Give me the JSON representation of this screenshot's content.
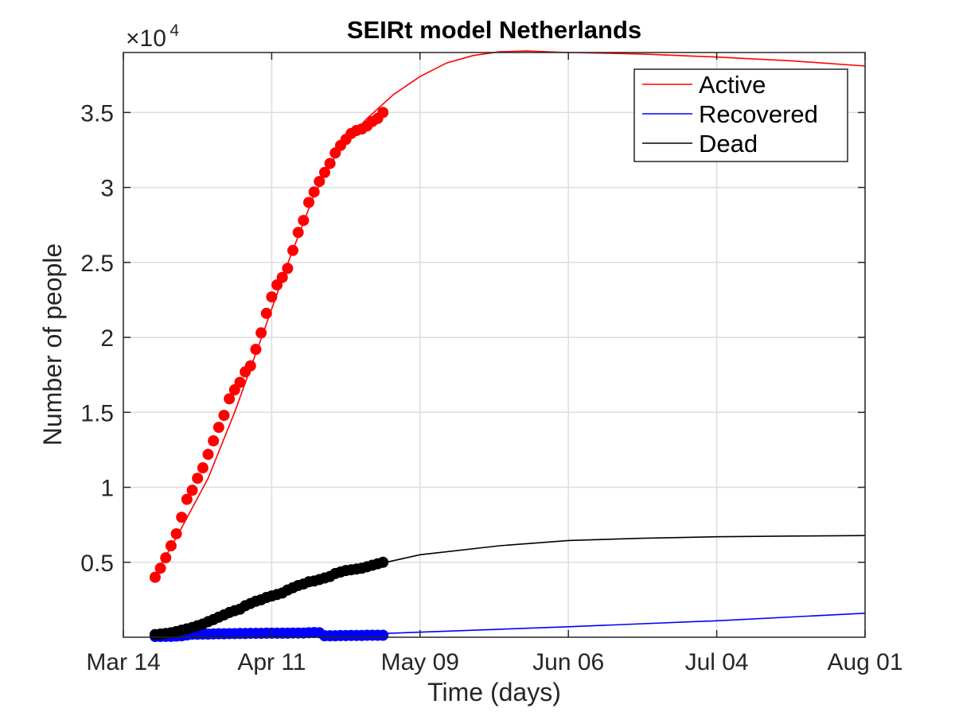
{
  "chart_data": {
    "type": "line",
    "title": "SEIRt model Netherlands",
    "xlabel": "Time (days)",
    "ylabel": "Number of people",
    "y_exponent_base": "×10",
    "y_exponent_power": "4",
    "x_start_date": "2020-03-14",
    "xlim": [
      "2020-03-14",
      "2020-08-01"
    ],
    "ylim": [
      0,
      39000
    ],
    "x_ticks": [
      "2020-03-14",
      "2020-04-11",
      "2020-05-09",
      "2020-06-06",
      "2020-07-04",
      "2020-08-01"
    ],
    "x_tick_labels": [
      "Mar 14",
      "Apr 11",
      "May 09",
      "Jun 06",
      "Jul 04",
      "Aug 01"
    ],
    "y_ticks": [
      5000,
      10000,
      15000,
      20000,
      25000,
      30000,
      35000
    ],
    "y_tick_labels": [
      "0.5",
      "1",
      "1.5",
      "2",
      "2.5",
      "3",
      "3.5"
    ],
    "grid": true,
    "legend_position": "top-right",
    "series": [
      {
        "name": "Active",
        "color": "#ff0000",
        "model_curve": [
          [
            "2020-03-20",
            4100
          ],
          [
            "2020-03-25",
            7300
          ],
          [
            "2020-03-30",
            10600
          ],
          [
            "2020-04-04",
            15000
          ],
          [
            "2020-04-09",
            19900
          ],
          [
            "2020-04-14",
            24900
          ],
          [
            "2020-04-19",
            29500
          ],
          [
            "2020-04-24",
            32700
          ],
          [
            "2020-04-29",
            34600
          ],
          [
            "2020-05-04",
            36200
          ],
          [
            "2020-05-09",
            37400
          ],
          [
            "2020-05-14",
            38300
          ],
          [
            "2020-05-19",
            38800
          ],
          [
            "2020-05-24",
            39050
          ],
          [
            "2020-05-29",
            39100
          ],
          [
            "2020-06-06",
            39000
          ],
          [
            "2020-06-20",
            38900
          ],
          [
            "2020-07-04",
            38700
          ],
          [
            "2020-07-18",
            38450
          ],
          [
            "2020-08-01",
            38100
          ]
        ],
        "observed": [
          [
            "2020-03-20",
            4000
          ],
          [
            "2020-03-21",
            4600
          ],
          [
            "2020-03-22",
            5300
          ],
          [
            "2020-03-23",
            6100
          ],
          [
            "2020-03-24",
            6900
          ],
          [
            "2020-03-25",
            8000
          ],
          [
            "2020-03-26",
            9200
          ],
          [
            "2020-03-27",
            9800
          ],
          [
            "2020-03-28",
            10600
          ],
          [
            "2020-03-29",
            11300
          ],
          [
            "2020-03-30",
            12200
          ],
          [
            "2020-03-31",
            13100
          ],
          [
            "2020-04-01",
            14000
          ],
          [
            "2020-04-02",
            14800
          ],
          [
            "2020-04-03",
            15900
          ],
          [
            "2020-04-04",
            16500
          ],
          [
            "2020-04-05",
            17000
          ],
          [
            "2020-04-06",
            17700
          ],
          [
            "2020-04-07",
            18100
          ],
          [
            "2020-04-08",
            19200
          ],
          [
            "2020-04-09",
            20300
          ],
          [
            "2020-04-10",
            21600
          ],
          [
            "2020-04-11",
            22700
          ],
          [
            "2020-04-12",
            23500
          ],
          [
            "2020-04-13",
            24000
          ],
          [
            "2020-04-14",
            24600
          ],
          [
            "2020-04-15",
            25800
          ],
          [
            "2020-04-16",
            27000
          ],
          [
            "2020-04-17",
            27800
          ],
          [
            "2020-04-18",
            29000
          ],
          [
            "2020-04-19",
            29700
          ],
          [
            "2020-04-20",
            30400
          ],
          [
            "2020-04-21",
            31000
          ],
          [
            "2020-04-22",
            31600
          ],
          [
            "2020-04-23",
            32300
          ],
          [
            "2020-04-24",
            32800
          ],
          [
            "2020-04-25",
            33200
          ],
          [
            "2020-04-26",
            33600
          ],
          [
            "2020-04-27",
            33800
          ],
          [
            "2020-04-28",
            33900
          ],
          [
            "2020-04-29",
            34100
          ],
          [
            "2020-04-30",
            34400
          ],
          [
            "2020-05-01",
            34600
          ],
          [
            "2020-05-02",
            35000
          ]
        ]
      },
      {
        "name": "Recovered",
        "color": "#0000ff",
        "model_curve": [
          [
            "2020-03-20",
            100
          ],
          [
            "2020-05-02",
            250
          ],
          [
            "2020-06-06",
            700
          ],
          [
            "2020-07-04",
            1100
          ],
          [
            "2020-08-01",
            1600
          ]
        ],
        "observed": [
          [
            "2020-03-20",
            50
          ],
          [
            "2020-03-21",
            50
          ],
          [
            "2020-03-22",
            60
          ],
          [
            "2020-03-23",
            60
          ],
          [
            "2020-03-24",
            80
          ],
          [
            "2020-03-25",
            100
          ],
          [
            "2020-03-26",
            150
          ],
          [
            "2020-03-27",
            200
          ],
          [
            "2020-03-28",
            200
          ],
          [
            "2020-03-29",
            210
          ],
          [
            "2020-03-30",
            210
          ],
          [
            "2020-03-31",
            220
          ],
          [
            "2020-04-01",
            230
          ],
          [
            "2020-04-02",
            230
          ],
          [
            "2020-04-03",
            240
          ],
          [
            "2020-04-04",
            240
          ],
          [
            "2020-04-05",
            250
          ],
          [
            "2020-04-06",
            250
          ],
          [
            "2020-04-07",
            260
          ],
          [
            "2020-04-08",
            260
          ],
          [
            "2020-04-09",
            260
          ],
          [
            "2020-04-10",
            270
          ],
          [
            "2020-04-11",
            270
          ],
          [
            "2020-04-12",
            270
          ],
          [
            "2020-04-13",
            270
          ],
          [
            "2020-04-14",
            270
          ],
          [
            "2020-04-15",
            280
          ],
          [
            "2020-04-16",
            280
          ],
          [
            "2020-04-17",
            280
          ],
          [
            "2020-04-18",
            300
          ],
          [
            "2020-04-19",
            310
          ],
          [
            "2020-04-20",
            300
          ],
          [
            "2020-04-21",
            100
          ],
          [
            "2020-04-22",
            100
          ],
          [
            "2020-04-23",
            100
          ],
          [
            "2020-04-24",
            110
          ],
          [
            "2020-04-25",
            110
          ],
          [
            "2020-04-26",
            120
          ],
          [
            "2020-04-27",
            120
          ],
          [
            "2020-04-28",
            120
          ],
          [
            "2020-04-29",
            130
          ],
          [
            "2020-04-30",
            130
          ],
          [
            "2020-05-01",
            130
          ],
          [
            "2020-05-02",
            130
          ]
        ]
      },
      {
        "name": "Dead",
        "color": "#000000",
        "model_curve": [
          [
            "2020-03-20",
            200
          ],
          [
            "2020-04-04",
            1800
          ],
          [
            "2020-04-19",
            3600
          ],
          [
            "2020-05-02",
            4950
          ],
          [
            "2020-05-09",
            5500
          ],
          [
            "2020-05-24",
            6100
          ],
          [
            "2020-06-06",
            6450
          ],
          [
            "2020-06-20",
            6600
          ],
          [
            "2020-07-04",
            6700
          ],
          [
            "2020-07-18",
            6750
          ],
          [
            "2020-08-01",
            6780
          ]
        ],
        "observed": [
          [
            "2020-03-20",
            180
          ],
          [
            "2020-03-21",
            210
          ],
          [
            "2020-03-22",
            250
          ],
          [
            "2020-03-23",
            300
          ],
          [
            "2020-03-24",
            380
          ],
          [
            "2020-03-25",
            470
          ],
          [
            "2020-03-26",
            560
          ],
          [
            "2020-03-27",
            650
          ],
          [
            "2020-03-28",
            770
          ],
          [
            "2020-03-29",
            880
          ],
          [
            "2020-03-30",
            1040
          ],
          [
            "2020-03-31",
            1180
          ],
          [
            "2020-04-01",
            1340
          ],
          [
            "2020-04-02",
            1490
          ],
          [
            "2020-04-03",
            1650
          ],
          [
            "2020-04-04",
            1770
          ],
          [
            "2020-04-05",
            1870
          ],
          [
            "2020-04-06",
            2100
          ],
          [
            "2020-04-07",
            2250
          ],
          [
            "2020-04-08",
            2400
          ],
          [
            "2020-04-09",
            2500
          ],
          [
            "2020-04-10",
            2650
          ],
          [
            "2020-04-11",
            2750
          ],
          [
            "2020-04-12",
            2850
          ],
          [
            "2020-04-13",
            2950
          ],
          [
            "2020-04-14",
            3150
          ],
          [
            "2020-04-15",
            3300
          ],
          [
            "2020-04-16",
            3450
          ],
          [
            "2020-04-17",
            3550
          ],
          [
            "2020-04-18",
            3700
          ],
          [
            "2020-04-19",
            3750
          ],
          [
            "2020-04-20",
            3850
          ],
          [
            "2020-04-21",
            3950
          ],
          [
            "2020-04-22",
            4050
          ],
          [
            "2020-04-23",
            4250
          ],
          [
            "2020-04-24",
            4350
          ],
          [
            "2020-04-25",
            4450
          ],
          [
            "2020-04-26",
            4500
          ],
          [
            "2020-04-27",
            4550
          ],
          [
            "2020-04-28",
            4600
          ],
          [
            "2020-04-29",
            4700
          ],
          [
            "2020-04-30",
            4800
          ],
          [
            "2020-05-01",
            4900
          ],
          [
            "2020-05-02",
            5000
          ]
        ]
      }
    ]
  }
}
